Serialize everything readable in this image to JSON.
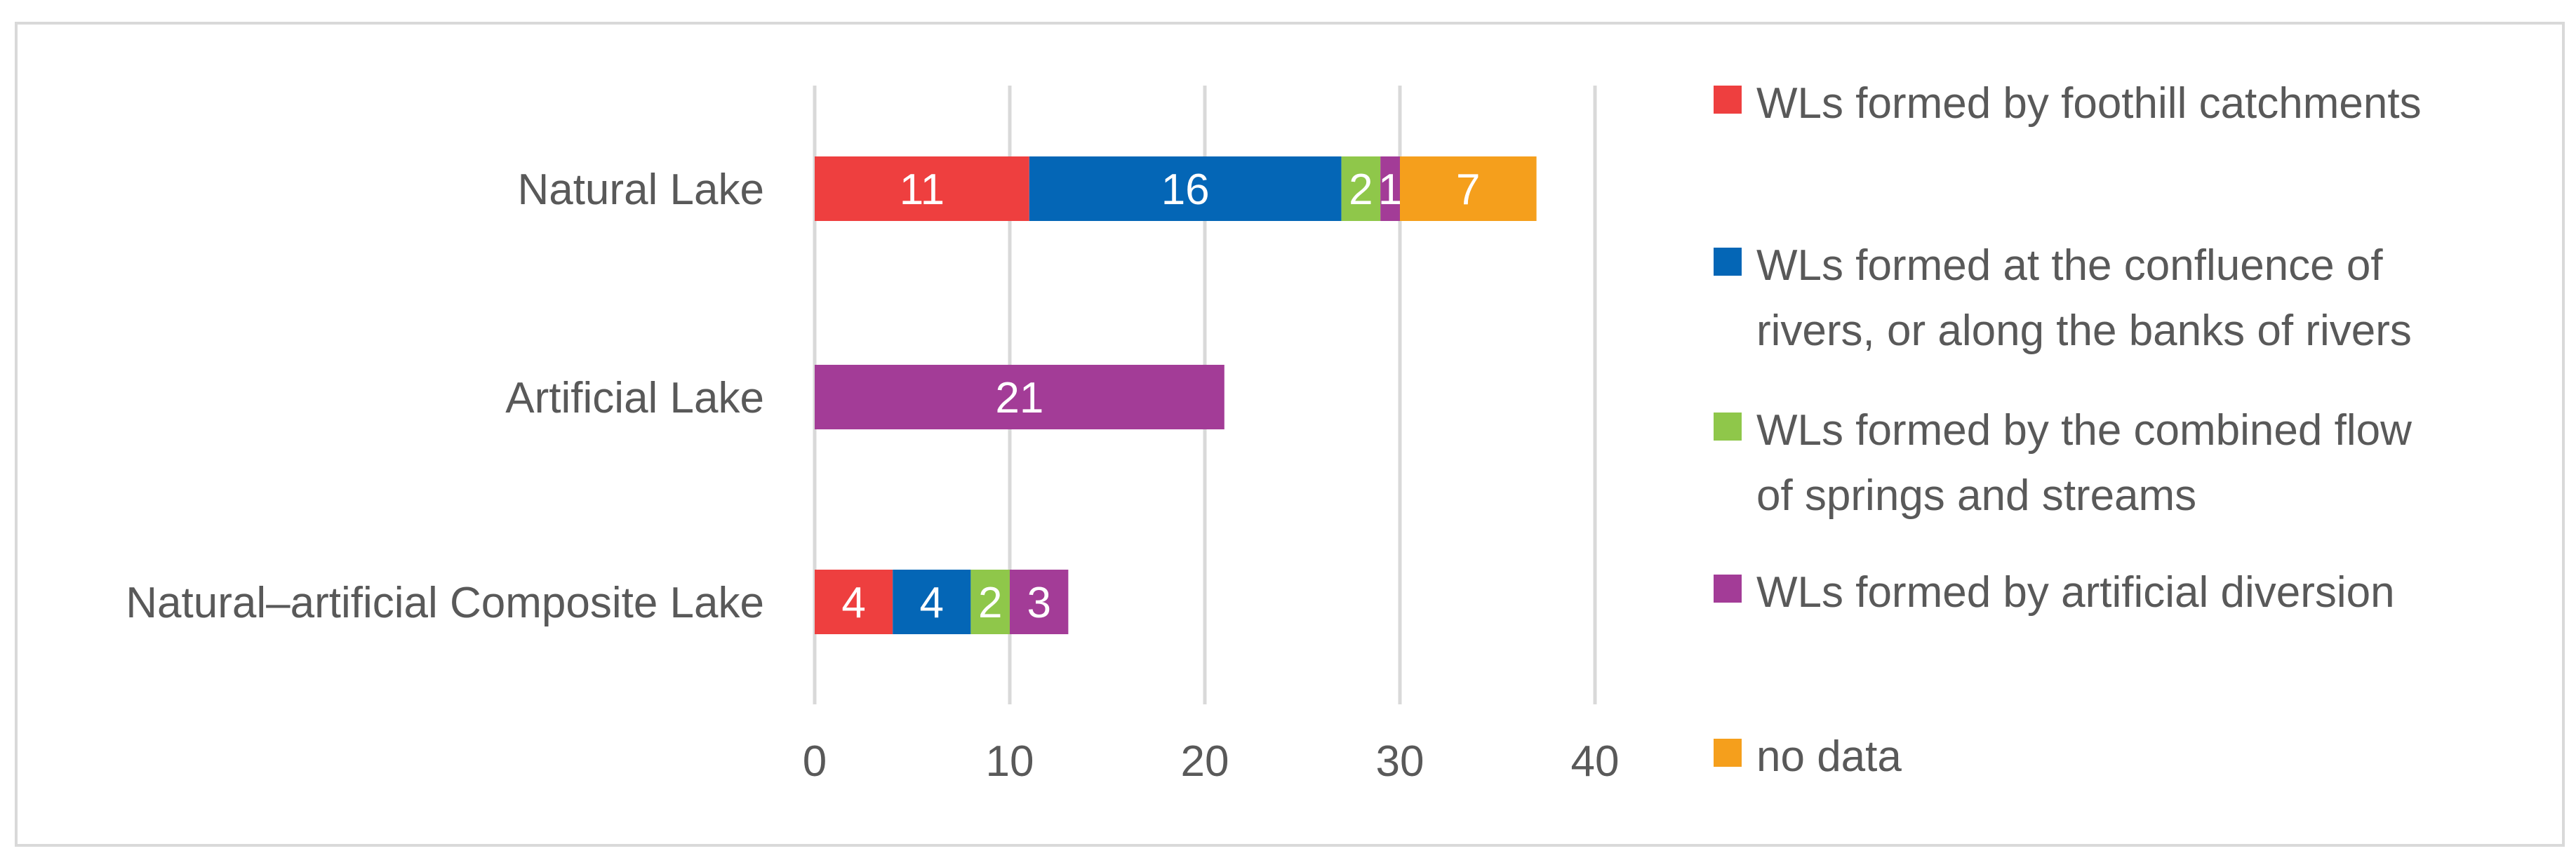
{
  "chart_data": {
    "type": "bar",
    "orientation": "horizontal",
    "stacked": true,
    "categories": [
      "Natural Lake",
      "Artificial Lake",
      "Natural–artificial Composite Lake"
    ],
    "series": [
      {
        "name": "WLs formed by foothill catchments",
        "color": "#ee3f3f",
        "values": [
          11,
          0,
          4
        ]
      },
      {
        "name": "WLs formed at the confluence of rivers, or along the banks of rivers",
        "color": "#0466b6",
        "values": [
          16,
          0,
          4
        ]
      },
      {
        "name": "WLs formed by the combined flow of springs and streams",
        "color": "#8fc74a",
        "values": [
          2,
          0,
          2
        ]
      },
      {
        "name": "WLs formed by artificial diversion",
        "color": "#a33c97",
        "values": [
          1,
          21,
          3
        ]
      },
      {
        "name": "no data",
        "color": "#f59f1c",
        "values": [
          7,
          0,
          0
        ]
      }
    ],
    "xlim": [
      0,
      40
    ],
    "xticks": [
      "0",
      "10",
      "20",
      "30",
      "40"
    ],
    "grid": true,
    "legend_position": "right"
  },
  "legend": {
    "items": [
      {
        "lines": [
          "WLs formed by foothill catchments"
        ]
      },
      {
        "lines": [
          "WLs formed at the confluence of",
          "rivers, or along the banks of rivers"
        ]
      },
      {
        "lines": [
          "WLs formed by the combined flow",
          "of springs and streams"
        ]
      },
      {
        "lines": [
          "WLs formed by artificial diversion"
        ]
      },
      {
        "lines": [
          "no data"
        ]
      }
    ]
  }
}
